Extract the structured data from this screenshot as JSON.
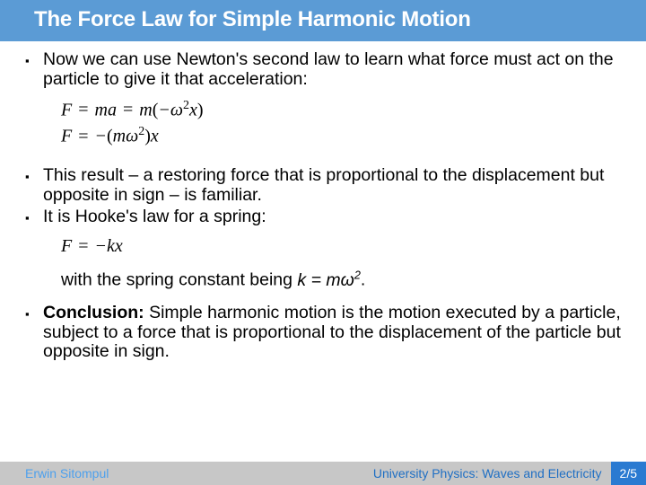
{
  "colors": {
    "title_bg": "#5b9bd5",
    "title_text": "#ffffff",
    "footer_bg": "#c7c7c7",
    "footer_left_text": "#4da0ed",
    "footer_center_text": "#1f6fc4",
    "page_bg": "#2a7ad1",
    "page_text": "#ffffff"
  },
  "title": "The Force Law for Simple Harmonic Motion",
  "bullets": {
    "b1": "Now we can use Newton's second law to learn what force must act on the particle to give it that acceleration:",
    "b2": "This result – a restoring force that is proportional to the displacement but opposite in sign – is familiar.",
    "b3": "It is Hooke's law for a spring:",
    "b3_cont_prefix": "with the spring constant being ",
    "b3_math": "k = mω",
    "b3_exp": "2",
    "b3_period": ".",
    "b4_label": "Conclusion:",
    "b4_text": " Simple harmonic motion is the motion executed by a particle, subject to a force that is proportional to the displacement of the particle but opposite in sign."
  },
  "equations": {
    "eq1_a": "F ",
    "eq1_b": " ma ",
    "eq1_c": " m",
    "eq1_d": "−ω",
    "eq1_e": "x",
    "eq2_a": "F ",
    "eq2_b": " −",
    "eq2_c": "mω",
    "eq2_d": "x",
    "eq3_a": "F ",
    "eq3_b": " −kx",
    "exp2": "2"
  },
  "footer": {
    "author": "Erwin Sitompul",
    "course": "University Physics: Waves and Electricity",
    "page": "2/5"
  }
}
